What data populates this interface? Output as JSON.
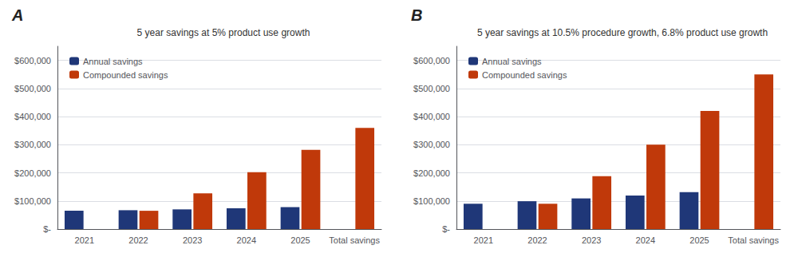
{
  "chart_data": [
    {
      "type": "bar",
      "title": "5 year savings at 5% product use growth",
      "annotations": [
        "A"
      ],
      "categories": [
        "2021",
        "2022",
        "2023",
        "2024",
        "2025",
        "Total savings"
      ],
      "series": [
        {
          "name": "Annual savings",
          "color": "#1f3778",
          "values": [
            65000,
            67000,
            70000,
            74000,
            78000,
            0
          ]
        },
        {
          "name": "Compounded savings",
          "color": "#c0390a",
          "values": [
            0,
            65000,
            127000,
            202000,
            282000,
            359875
          ]
        }
      ],
      "ylim": [
        0,
        650000
      ],
      "yticks": [
        {
          "value": 0,
          "label": "$-"
        },
        {
          "value": 100000,
          "label": "$100,000"
        },
        {
          "value": 200000,
          "label": "$200,000"
        },
        {
          "value": 300000,
          "label": "$300,000"
        },
        {
          "value": 400000,
          "label": "$400,000"
        },
        {
          "value": 500000,
          "label": "$500,000"
        },
        {
          "value": 600000,
          "label": "$600,000"
        }
      ],
      "grid": true,
      "legend": "upper left"
    },
    {
      "type": "bar",
      "title": "5 year savings at 10.5% procedure growth, 6.8% product use growth",
      "annotations": [
        "B"
      ],
      "categories": [
        "2021",
        "2022",
        "2023",
        "2024",
        "2025",
        "Total savings"
      ],
      "series": [
        {
          "name": "Annual savings",
          "color": "#1f3778",
          "values": [
            90000,
            99000,
            109000,
            119000,
            131000,
            0
          ]
        },
        {
          "name": "Compounded savings",
          "color": "#c0390a",
          "values": [
            0,
            90000,
            188000,
            300000,
            420000,
            549931
          ]
        }
      ],
      "ylim": [
        0,
        650000
      ],
      "yticks": [
        {
          "value": 0,
          "label": "$-"
        },
        {
          "value": 100000,
          "label": "$100,000"
        },
        {
          "value": 200000,
          "label": "$200,000"
        },
        {
          "value": 300000,
          "label": "$300,000"
        },
        {
          "value": 400000,
          "label": "$400,000"
        },
        {
          "value": 500000,
          "label": "$500,000"
        },
        {
          "value": 600000,
          "label": "$600,000"
        }
      ],
      "grid": true,
      "legend": "upper left"
    }
  ]
}
